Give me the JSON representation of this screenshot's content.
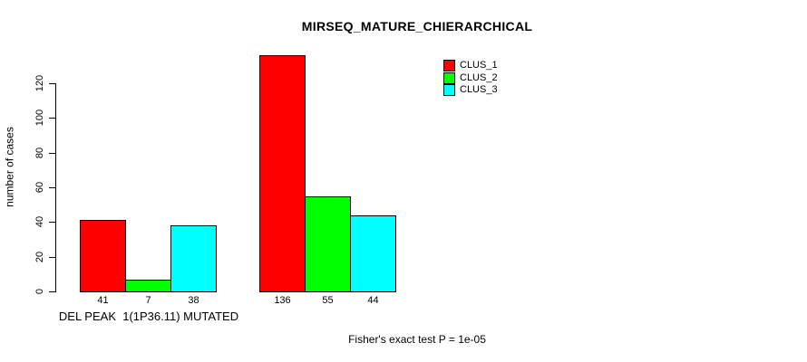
{
  "chart_data": {
    "type": "bar",
    "title": "MIRSEQ_MATURE_CHIERARCHICAL",
    "xlabel": "",
    "ylabel": "number of cases",
    "ylim": [
      0,
      136
    ],
    "yticks": [
      0,
      20,
      40,
      60,
      80,
      100,
      120
    ],
    "grid": false,
    "legend_position": "top-right",
    "categories": [
      "DEL PEAK  1(1P36.11) MUTATED",
      ""
    ],
    "series": [
      {
        "name": "CLUS_1",
        "color": "#ff0000",
        "values": [
          41,
          136
        ]
      },
      {
        "name": "CLUS_2",
        "color": "#00ff00",
        "values": [
          7,
          55
        ]
      },
      {
        "name": "CLUS_3",
        "color": "#00ffff",
        "values": [
          38,
          44
        ]
      }
    ],
    "bar_value_labels": [
      [
        "41",
        "7",
        "38"
      ],
      [
        "136",
        "55",
        "44"
      ]
    ],
    "annotation": "Fisher's exact test P = 1e-05",
    "colors": {
      "axis": "#000000",
      "background": "#ffffff"
    }
  }
}
